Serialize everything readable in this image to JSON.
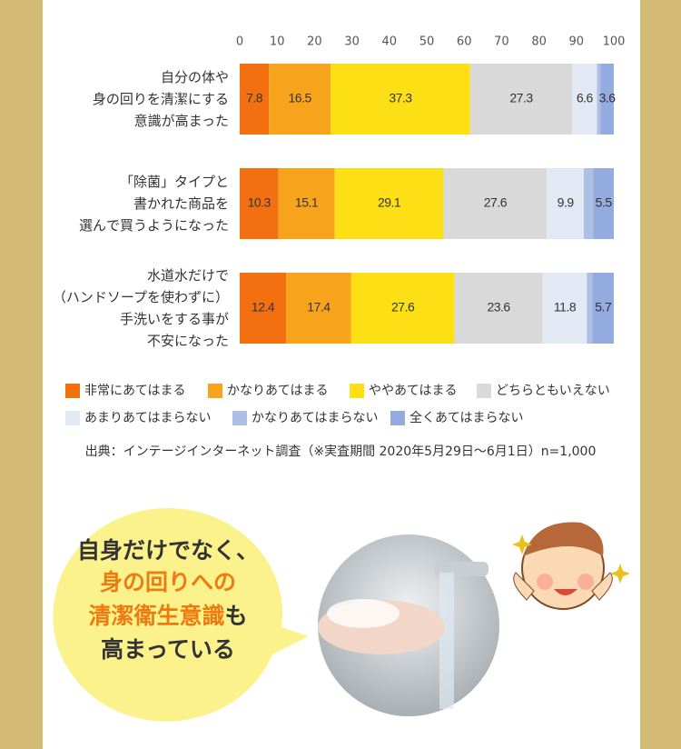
{
  "chart_data": {
    "type": "stacked_barh",
    "categories": [
      "自分の体や\n身の回りを清潔にする\n意識が高まった",
      "「除菌」タイプと\n書かれた商品を\n選んで買うようになった",
      "水道水だけで\n（ハンドソープを使わずに）\n手洗いをする事が\n不安になった"
    ],
    "xlim": [
      0,
      100
    ],
    "xticks": [
      0,
      10,
      20,
      30,
      40,
      50,
      60,
      70,
      80,
      90,
      100
    ],
    "grid": false,
    "series": [
      {
        "name": "非常にあてはまる",
        "color": "#f2700f",
        "label_color": "#ffffff",
        "values": [
          7.8,
          10.3,
          12.4
        ]
      },
      {
        "name": "かなりあてはまる",
        "color": "#f7a31c",
        "label_color": "#ffffff",
        "values": [
          16.5,
          15.1,
          17.4
        ]
      },
      {
        "name": "ややあてはまる",
        "color": "#fcdf14",
        "label_color": "#ffffff",
        "values": [
          37.3,
          29.1,
          27.6
        ]
      },
      {
        "name": "どちらともいえない",
        "color": "#d9d9d9",
        "label_color": "#333333",
        "values": [
          27.3,
          27.6,
          23.6
        ]
      },
      {
        "name": "あまりあてはまらない",
        "color": "#e2e9f5",
        "label_color": "#333333",
        "values": [
          6.6,
          9.9,
          11.8
        ]
      },
      {
        "name": "かなりあてはまらない",
        "color": "#aebfe6",
        "label_color": "#333333",
        "values": [
          0.9,
          2.5,
          1.5
        ],
        "value_labels": [
          null,
          null,
          null
        ]
      },
      {
        "name": "全くあてはまらない",
        "color": "#93abdf",
        "label_color": "#333333",
        "values": [
          3.6,
          5.5,
          5.7
        ]
      }
    ],
    "source": "出典：インテージインターネット調査（※実査期間 2020年5月29日〜6月1日）n=1,000"
  },
  "callout": {
    "lines": [
      [
        "自身だけでなく、"
      ],
      [
        "身の回りへの"
      ],
      [
        "清潔衛生意識",
        "も"
      ],
      [
        "高まっている"
      ]
    ]
  }
}
